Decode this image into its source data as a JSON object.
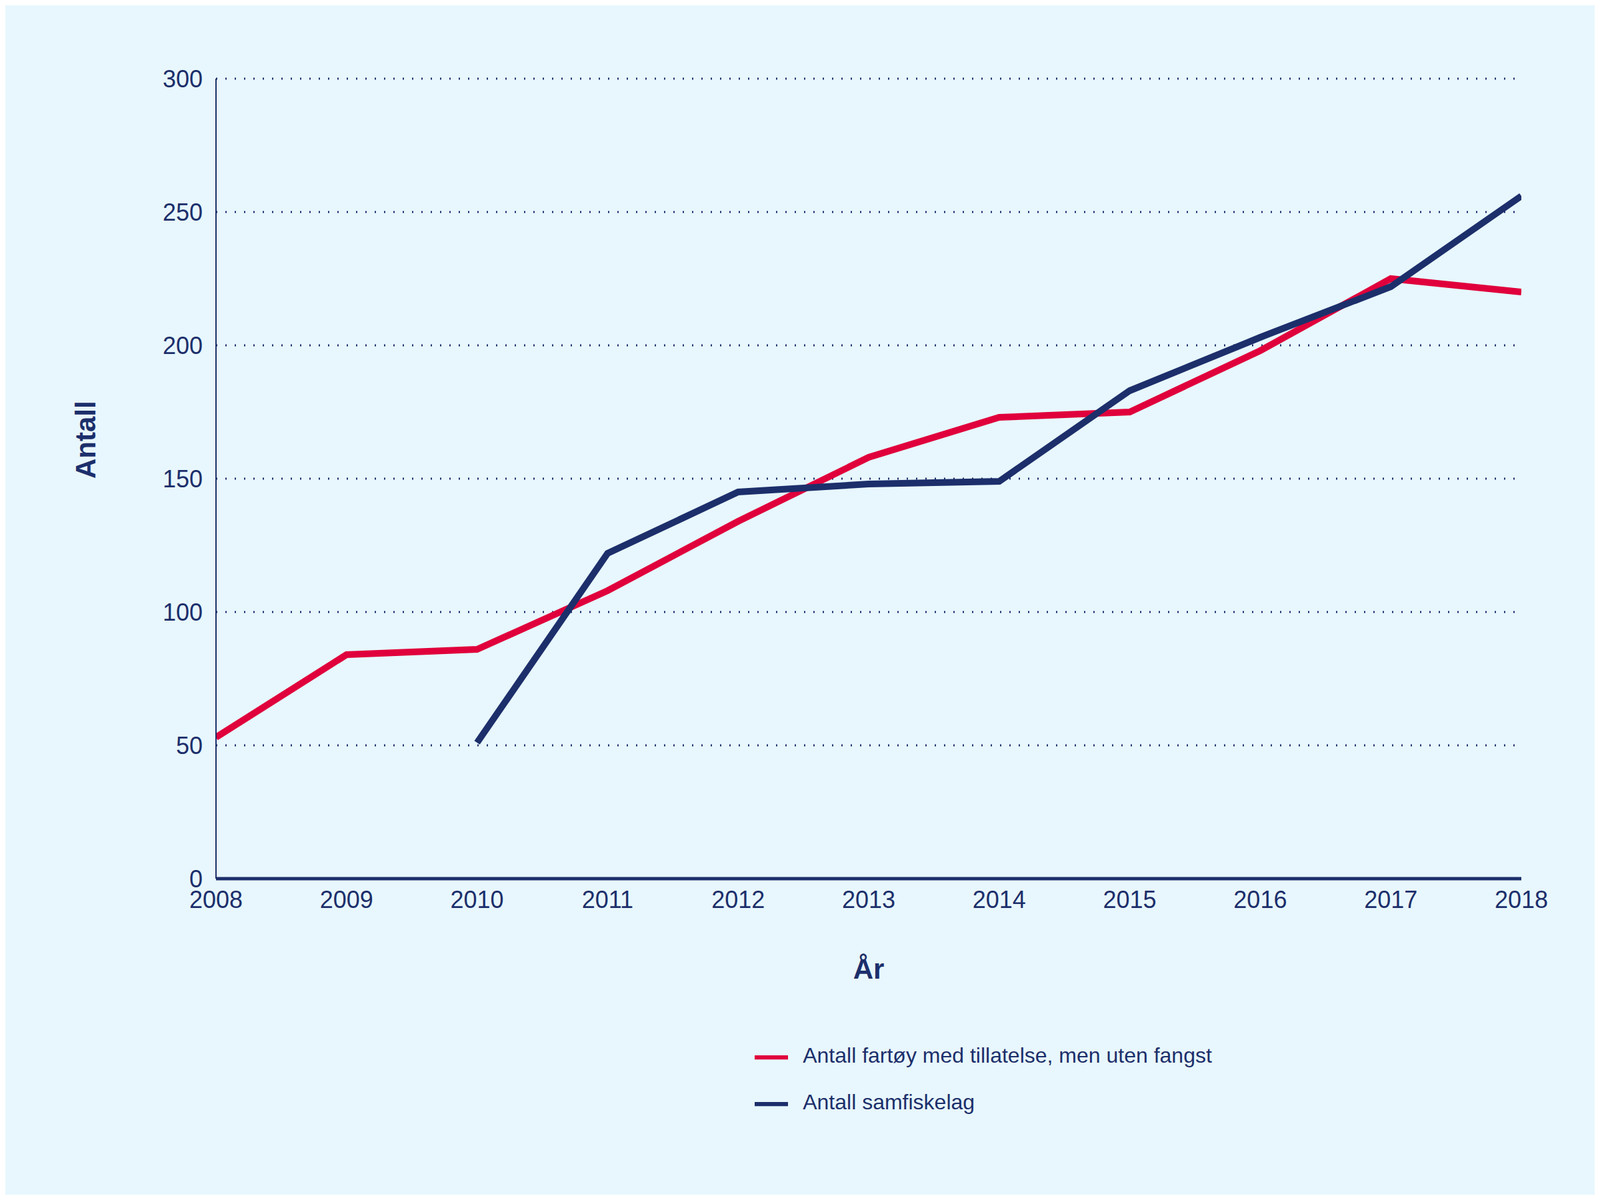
{
  "chart_data": {
    "type": "line",
    "x_label": "År",
    "y_label": "Antall",
    "x": [
      2008,
      2009,
      2010,
      2011,
      2012,
      2013,
      2014,
      2015,
      2016,
      2017,
      2018
    ],
    "xlim": [
      2008,
      2018
    ],
    "xticks": [
      2008,
      2009,
      2010,
      2011,
      2012,
      2013,
      2014,
      2015,
      2016,
      2017,
      2018
    ],
    "ylim": [
      0,
      300
    ],
    "yticks": [
      0,
      50,
      100,
      150,
      200,
      250,
      300
    ],
    "grid": true,
    "legend": "bottom",
    "series": [
      {
        "name": "Antall fartøy med tillatelse, men uten fangst",
        "color": "#e0003c",
        "values": [
          53,
          84,
          86,
          108,
          134,
          158,
          173,
          175,
          198,
          225,
          220
        ]
      },
      {
        "name": "Antall samfiskelag",
        "color": "#1c2f6b",
        "values": [
          null,
          null,
          51,
          122,
          145,
          148,
          149,
          183,
          203,
          222,
          256
        ]
      }
    ]
  }
}
